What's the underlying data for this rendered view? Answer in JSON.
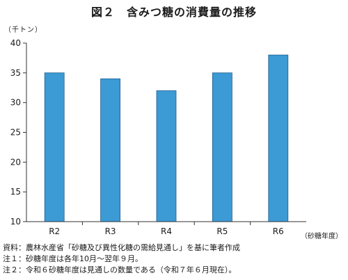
{
  "chart_data": {
    "type": "bar",
    "title": "図２　含みつ糖の消費量の推移",
    "ylabel": "（千トン）",
    "xlabel": "（砂糖年度）",
    "categories": [
      "R2",
      "R3",
      "R4",
      "R5",
      "R6"
    ],
    "values": [
      35,
      34,
      32,
      35,
      38
    ],
    "ylim": [
      10,
      40
    ],
    "yticks": [
      10,
      15,
      20,
      25,
      30,
      35,
      40
    ],
    "grid": false,
    "bar_color": "#3c9ad5"
  },
  "notes": [
    "資料：農林水産省「砂糖及び異性化糖の需給見通し」を基に筆者作成",
    "注１：砂糖年度は各年10月～翌年９月。",
    "注２：令和６砂糖年度は見通しの数量である（令和７年６月現在）。"
  ]
}
